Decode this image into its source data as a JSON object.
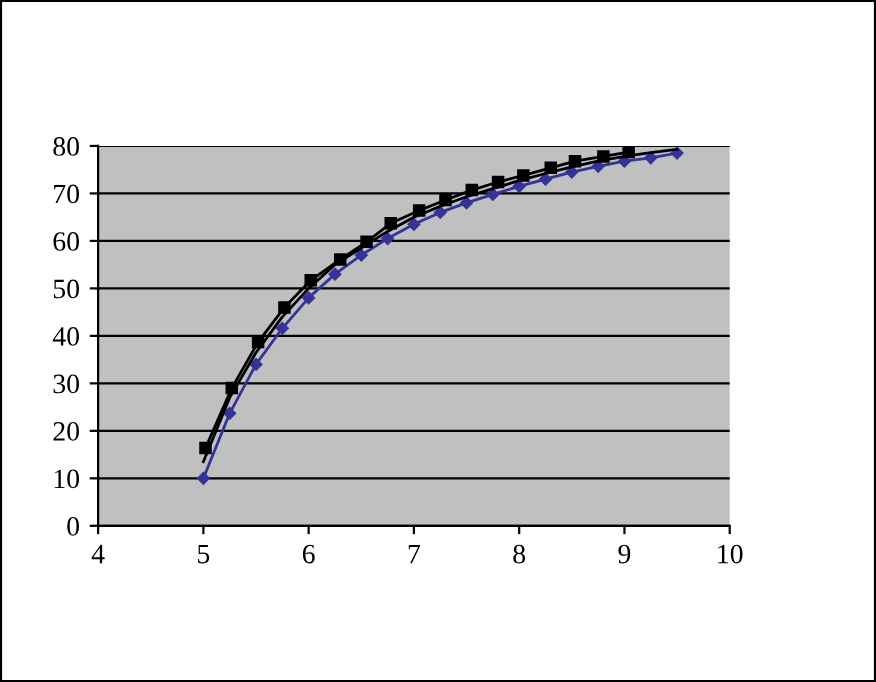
{
  "chart_data": {
    "type": "line",
    "xlim": [
      4,
      10
    ],
    "ylim": [
      0,
      80
    ],
    "xticks": [
      4,
      5,
      6,
      7,
      8,
      9,
      10
    ],
    "yticks": [
      0,
      10,
      20,
      30,
      40,
      50,
      60,
      70,
      80
    ],
    "grid": "y",
    "line_style": "solid",
    "series": [
      {
        "color": "#333399",
        "marker": "diamond",
        "x": [
          5,
          5.25,
          5.5,
          5.75,
          6,
          6.25,
          6.5,
          6.75,
          7,
          7.25,
          7.5,
          7.75,
          8,
          8.25,
          8.5,
          8.75,
          9,
          9.25,
          9.5
        ],
        "values": [
          10,
          23.7,
          34,
          41.6,
          48,
          53,
          57,
          60.5,
          63.5,
          66,
          68,
          69.8,
          71.5,
          73,
          74.5,
          75.7,
          76.8,
          77.5,
          78.5
        ]
      },
      {
        "color": "#000000",
        "marker": "none",
        "x": [
          5,
          5.25,
          5.5,
          5.75,
          6,
          6.25,
          6.5,
          6.75,
          7,
          7.25,
          7.5,
          7.75,
          8,
          8.25,
          8.5,
          8.75,
          9,
          9.25,
          9.5
        ],
        "values": [
          13.5,
          27,
          36.5,
          44,
          50,
          55,
          58.5,
          62,
          65,
          67.3,
          69.3,
          71,
          72.7,
          74.2,
          75.6,
          76.8,
          77.8,
          78.6,
          79.3
        ]
      },
      {
        "color": "#000000",
        "marker": "square",
        "x": [
          5.02,
          5.27,
          5.52,
          5.77,
          6.02,
          6.3,
          6.55,
          6.78,
          7.05,
          7.3,
          7.55,
          7.8,
          8.04,
          8.3,
          8.53,
          8.8,
          9.04
        ],
        "values": [
          16.4,
          29,
          38.7,
          46,
          51.7,
          56.1,
          59.8,
          63.7,
          66.4,
          68.6,
          70.7,
          72.4,
          73.8,
          75.4,
          76.8,
          77.8,
          78.7
        ]
      }
    ]
  }
}
